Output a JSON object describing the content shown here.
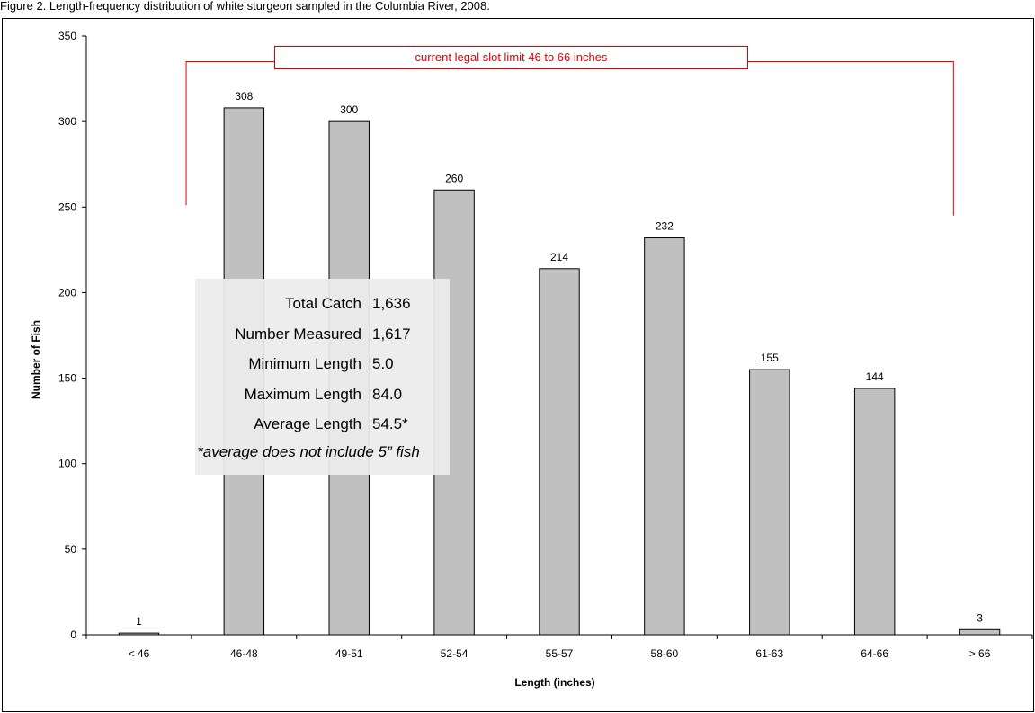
{
  "figure": {
    "caption": "Figure 2. Length-frequency distribution of white sturgeon sampled in the Columbia River, 2008."
  },
  "chart_data": {
    "type": "bar",
    "categories": [
      "< 46",
      "46-48",
      "49-51",
      "52-54",
      "55-57",
      "58-60",
      "61-63",
      "64-66",
      "> 66"
    ],
    "values": [
      1,
      308,
      300,
      260,
      214,
      232,
      155,
      144,
      3
    ],
    "data_labels": [
      "1",
      "308",
      "300",
      "260",
      "214",
      "232",
      "155",
      "144",
      "3"
    ],
    "xlabel": "Length (inches)",
    "ylabel": "Number of Fish",
    "ylim": [
      0,
      350
    ],
    "yticks": [
      "0",
      "50",
      "100",
      "150",
      "200",
      "250",
      "300",
      "350"
    ],
    "grid": false,
    "bar_color": "#c0c0c0",
    "annotation_color": "#e00000",
    "annotation": "current legal slot limit 46 to 66 inches"
  },
  "stats": {
    "rows": [
      {
        "label": "Total Catch",
        "value": "1,636"
      },
      {
        "label": "Number Measured",
        "value": "1,617"
      },
      {
        "label": "Minimum Length",
        "value": "5.0"
      },
      {
        "label": "Maximum Length",
        "value": "84.0"
      },
      {
        "label": "Average Length",
        "value": "54.5*"
      }
    ],
    "footnote": "*average does not include 5” fish"
  }
}
